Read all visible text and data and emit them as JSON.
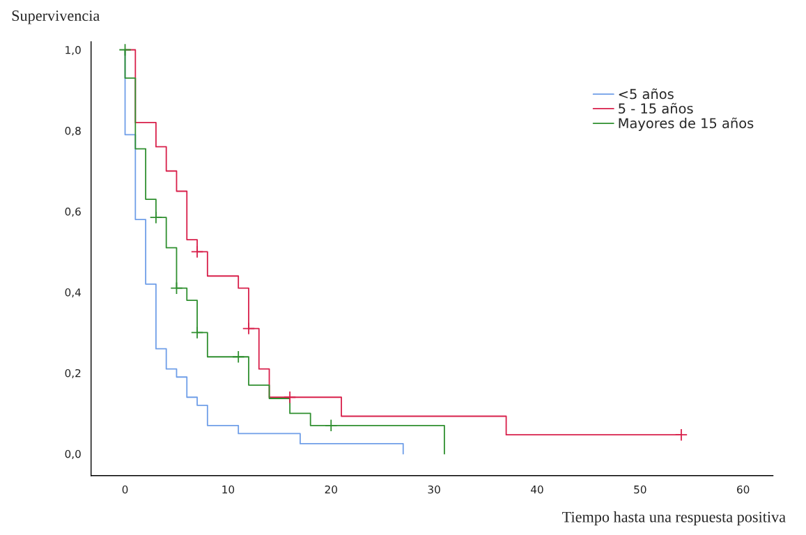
{
  "chart_data": {
    "type": "step",
    "xlabel": "Tiempo hasta una respuesta positiva",
    "ylabel": "Supervivencia",
    "xlim": [
      -3.3,
      62.9
    ],
    "ylim": [
      -0.054,
      1.02
    ],
    "xticks": [
      0,
      10,
      20,
      30,
      40,
      50,
      60
    ],
    "yticks": [
      {
        "value": 0,
        "label": "0,0"
      },
      {
        "value": 0.2,
        "label": "0,2"
      },
      {
        "value": 0.4,
        "label": "0,4"
      },
      {
        "value": 0.6,
        "label": "0,6"
      },
      {
        "value": 0.8,
        "label": "0,8"
      },
      {
        "value": 1.0,
        "label": "1,0"
      }
    ],
    "grid": false,
    "legend": "top right",
    "series": [
      {
        "name": "<5 años",
        "color": "#6f9ee8",
        "x": [
          0,
          0,
          1,
          2,
          3,
          4,
          5,
          6,
          7,
          8,
          11,
          17,
          27,
          27
        ],
        "values": [
          1.0,
          0.79,
          0.58,
          0.42,
          0.26,
          0.21,
          0.19,
          0.14,
          0.12,
          0.07,
          0.05,
          0.025,
          0.025,
          0
        ]
      },
      {
        "name": "5 - 15 años",
        "color": "#d81f4a",
        "x": [
          0,
          1,
          3,
          4,
          5,
          6,
          7,
          8,
          11,
          12,
          13,
          14,
          21,
          37,
          54
        ],
        "values": [
          1.0,
          0.82,
          0.76,
          0.7,
          0.65,
          0.53,
          0.5,
          0.44,
          0.41,
          0.31,
          0.21,
          0.14,
          0.093,
          0.047,
          0.047
        ]
      },
      {
        "name": "Mayores de 15 años",
        "color": "#2f8f2f",
        "x": [
          0,
          0,
          1,
          2,
          3,
          4,
          5,
          6,
          7,
          8,
          12,
          14,
          16,
          18,
          31,
          31
        ],
        "values": [
          1.0,
          0.93,
          0.755,
          0.63,
          0.585,
          0.51,
          0.41,
          0.38,
          0.3,
          0.24,
          0.17,
          0.137,
          0.1,
          0.07,
          0.07,
          0
        ]
      },
      {
        "type": "scatter",
        "marker": "cross",
        "color": "#d81f4a",
        "x": [
          7,
          12,
          16,
          54
        ],
        "values": [
          0.5,
          0.31,
          0.14,
          0.047
        ]
      },
      {
        "type": "scatter",
        "marker": "cross",
        "color": "#2f8f2f",
        "x": [
          0,
          3,
          5,
          7,
          11,
          20
        ],
        "values": [
          1.0,
          0.585,
          0.41,
          0.3,
          0.24,
          0.07
        ]
      }
    ]
  }
}
